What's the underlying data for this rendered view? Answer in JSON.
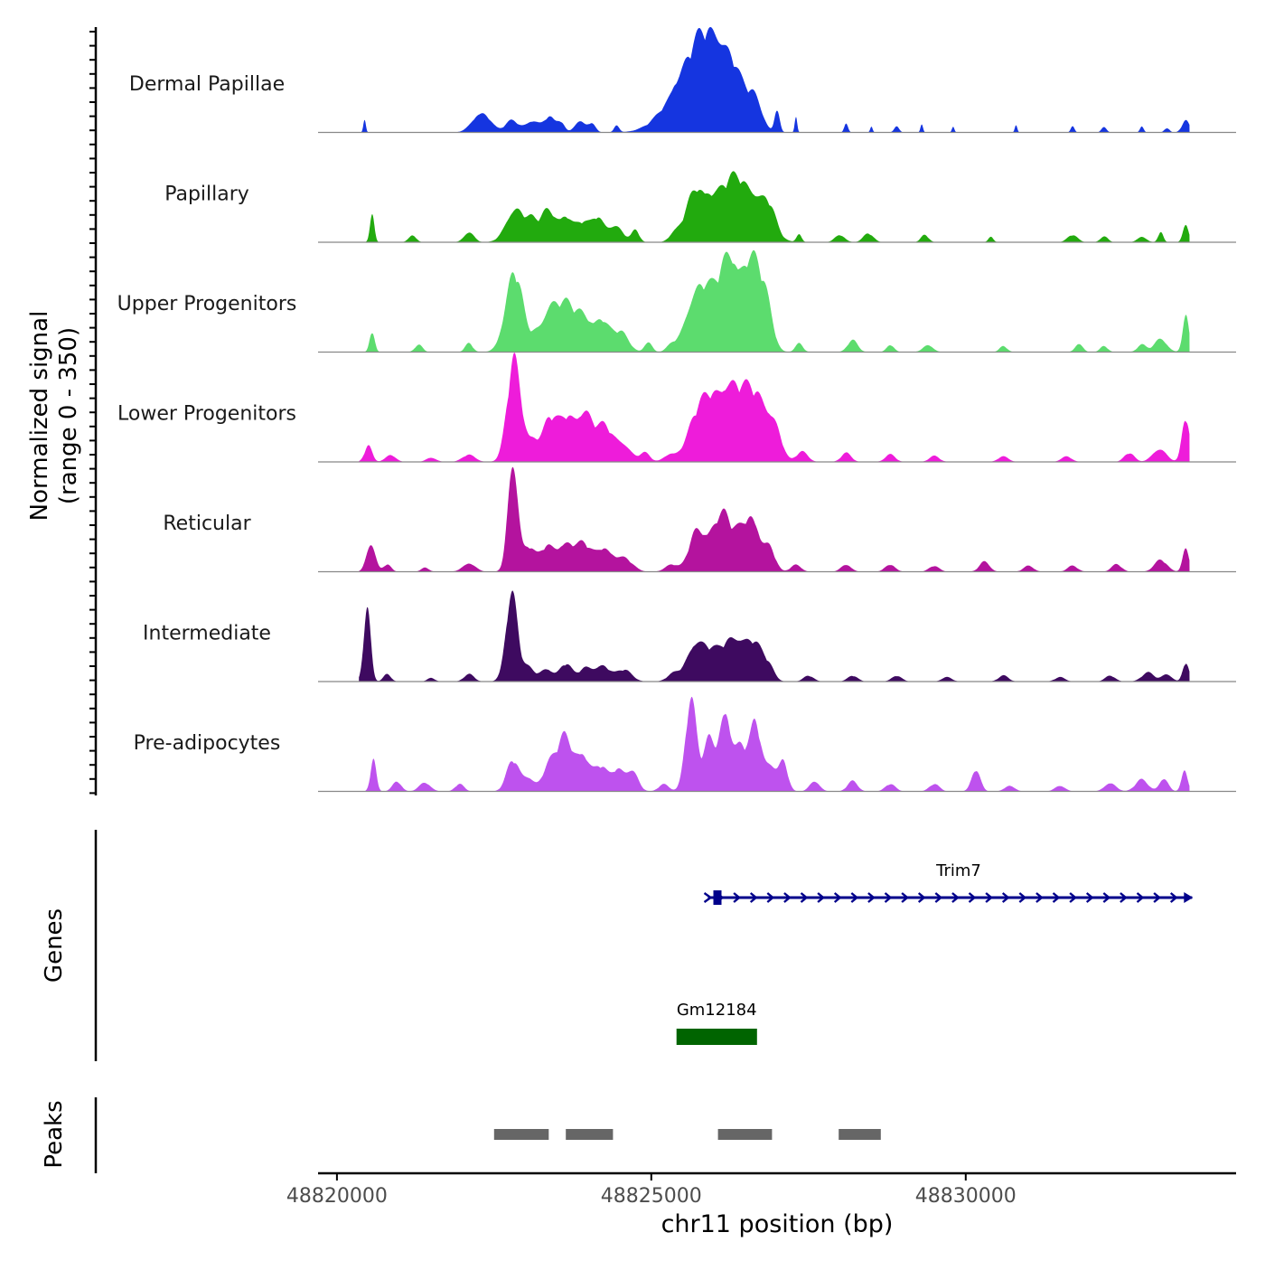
{
  "chart_data": {
    "type": "area",
    "title": "",
    "ylabel_lines": [
      "Normalized signal",
      "(range 0 - 350)"
    ],
    "y_range": [
      0,
      350
    ],
    "xlabel": "chr11 position (bp)",
    "x_range": [
      48819700,
      48834300
    ],
    "x_ticks": [
      48820000,
      48825000,
      48830000
    ],
    "x_tick_labels": [
      "48820000",
      "48825000",
      "48830000"
    ],
    "track_labels": {
      "genes": "Genes",
      "peaks": "Peaks"
    },
    "series": [
      {
        "name": "Dermal Papillae",
        "color": "#1535E0",
        "peaks": [
          [
            48820440,
            40,
            20
          ],
          [
            48822300,
            70,
            140
          ],
          [
            48822780,
            40,
            100
          ],
          [
            48823110,
            40,
            120
          ],
          [
            48823380,
            50,
            80
          ],
          [
            48823560,
            35,
            60
          ],
          [
            48823860,
            40,
            80
          ],
          [
            48824050,
            30,
            60
          ],
          [
            48824450,
            25,
            40
          ],
          [
            48825350,
            15,
            60
          ],
          [
            48825600,
            170,
            350
          ],
          [
            48825850,
            150,
            250
          ],
          [
            48826100,
            140,
            200
          ],
          [
            48826350,
            120,
            170
          ],
          [
            48826650,
            100,
            120
          ],
          [
            48827000,
            80,
            40
          ],
          [
            48827300,
            50,
            20
          ],
          [
            48828100,
            30,
            30
          ],
          [
            48828500,
            20,
            20
          ],
          [
            48828900,
            20,
            40
          ],
          [
            48829300,
            30,
            20
          ],
          [
            48829800,
            20,
            20
          ],
          [
            48830800,
            25,
            20
          ],
          [
            48831700,
            20,
            30
          ],
          [
            48832200,
            20,
            40
          ],
          [
            48832800,
            20,
            30
          ],
          [
            48833200,
            15,
            40
          ],
          [
            48833500,
            40,
            60
          ]
        ]
      },
      {
        "name": "Papillary",
        "color": "#22AA0E",
        "peaks": [
          [
            48820560,
            100,
            35
          ],
          [
            48821200,
            25,
            60
          ],
          [
            48822100,
            35,
            80
          ],
          [
            48822850,
            120,
            150
          ],
          [
            48823100,
            40,
            70
          ],
          [
            48823350,
            110,
            130
          ],
          [
            48823640,
            80,
            100
          ],
          [
            48823900,
            65,
            110
          ],
          [
            48824150,
            80,
            100
          ],
          [
            48824430,
            55,
            120
          ],
          [
            48824750,
            40,
            60
          ],
          [
            48825350,
            20,
            80
          ],
          [
            48825700,
            170,
            160
          ],
          [
            48825980,
            110,
            140
          ],
          [
            48826210,
            120,
            130
          ],
          [
            48826400,
            105,
            140
          ],
          [
            48826650,
            150,
            210
          ],
          [
            48826890,
            55,
            100
          ],
          [
            48827350,
            30,
            40
          ],
          [
            48828000,
            25,
            80
          ],
          [
            48828450,
            30,
            80
          ],
          [
            48829350,
            25,
            60
          ],
          [
            48830400,
            20,
            40
          ],
          [
            48831700,
            25,
            80
          ],
          [
            48832200,
            20,
            60
          ],
          [
            48832800,
            20,
            70
          ],
          [
            48833100,
            35,
            40
          ],
          [
            48833500,
            65,
            45
          ]
        ]
      },
      {
        "name": "Upper Progenitors",
        "color": "#5CDC6E",
        "peaks": [
          [
            48820560,
            70,
            40
          ],
          [
            48821300,
            25,
            60
          ],
          [
            48822100,
            30,
            60
          ],
          [
            48822820,
            270,
            140
          ],
          [
            48823150,
            35,
            70
          ],
          [
            48823390,
            155,
            130
          ],
          [
            48823650,
            135,
            120
          ],
          [
            48823900,
            115,
            120
          ],
          [
            48824200,
            110,
            130
          ],
          [
            48824520,
            65,
            120
          ],
          [
            48824950,
            35,
            60
          ],
          [
            48825320,
            20,
            80
          ],
          [
            48825690,
            175,
            160
          ],
          [
            48825930,
            135,
            150
          ],
          [
            48826200,
            210,
            140
          ],
          [
            48826380,
            160,
            170
          ],
          [
            48826640,
            260,
            150
          ],
          [
            48826850,
            90,
            100
          ],
          [
            48827350,
            30,
            60
          ],
          [
            48828200,
            40,
            80
          ],
          [
            48828800,
            25,
            60
          ],
          [
            48829400,
            25,
            80
          ],
          [
            48830600,
            20,
            60
          ],
          [
            48831800,
            30,
            60
          ],
          [
            48832200,
            20,
            60
          ],
          [
            48832800,
            25,
            70
          ],
          [
            48833100,
            45,
            100
          ],
          [
            48833500,
            120,
            50
          ]
        ]
      },
      {
        "name": "Lower Progenitors",
        "color": "#EE1CDA",
        "peaks": [
          [
            48820500,
            55,
            60
          ],
          [
            48820850,
            25,
            80
          ],
          [
            48821500,
            15,
            80
          ],
          [
            48822100,
            25,
            100
          ],
          [
            48822820,
            350,
            110
          ],
          [
            48823100,
            70,
            90
          ],
          [
            48823380,
            140,
            120
          ],
          [
            48823670,
            145,
            130
          ],
          [
            48823950,
            155,
            120
          ],
          [
            48824250,
            115,
            130
          ],
          [
            48824550,
            60,
            130
          ],
          [
            48824900,
            30,
            80
          ],
          [
            48825300,
            25,
            100
          ],
          [
            48825720,
            140,
            160
          ],
          [
            48825970,
            155,
            150
          ],
          [
            48826220,
            180,
            150
          ],
          [
            48826480,
            170,
            170
          ],
          [
            48826750,
            165,
            170
          ],
          [
            48826980,
            75,
            100
          ],
          [
            48827400,
            35,
            90
          ],
          [
            48828100,
            30,
            80
          ],
          [
            48828800,
            25,
            80
          ],
          [
            48829500,
            20,
            80
          ],
          [
            48830600,
            20,
            80
          ],
          [
            48831600,
            20,
            80
          ],
          [
            48832600,
            30,
            80
          ],
          [
            48833080,
            45,
            110
          ],
          [
            48833500,
            150,
            60
          ]
        ]
      },
      {
        "name": "Reticular",
        "color": "#B4139E",
        "peaks": [
          [
            48820540,
            100,
            70
          ],
          [
            48820800,
            25,
            60
          ],
          [
            48821400,
            15,
            60
          ],
          [
            48822100,
            30,
            100
          ],
          [
            48822800,
            390,
            80
          ],
          [
            48823050,
            80,
            90
          ],
          [
            48823340,
            85,
            120
          ],
          [
            48823640,
            95,
            120
          ],
          [
            48823920,
            90,
            120
          ],
          [
            48824250,
            80,
            130
          ],
          [
            48824570,
            45,
            130
          ],
          [
            48825320,
            25,
            100
          ],
          [
            48825720,
            140,
            120
          ],
          [
            48825960,
            100,
            100
          ],
          [
            48826150,
            170,
            110
          ],
          [
            48826400,
            120,
            120
          ],
          [
            48826620,
            170,
            110
          ],
          [
            48826880,
            80,
            90
          ],
          [
            48827300,
            25,
            80
          ],
          [
            48828100,
            25,
            80
          ],
          [
            48828800,
            25,
            80
          ],
          [
            48829500,
            20,
            80
          ],
          [
            48830300,
            35,
            80
          ],
          [
            48831000,
            20,
            80
          ],
          [
            48831700,
            20,
            80
          ],
          [
            48832400,
            25,
            80
          ],
          [
            48833100,
            40,
            100
          ],
          [
            48833500,
            85,
            50
          ]
        ]
      },
      {
        "name": "Intermediate",
        "color": "#3E0A60",
        "peaks": [
          [
            48820480,
            250,
            55
          ],
          [
            48820800,
            25,
            60
          ],
          [
            48821500,
            12,
            60
          ],
          [
            48822100,
            25,
            80
          ],
          [
            48822780,
            300,
            95
          ],
          [
            48823050,
            45,
            90
          ],
          [
            48823330,
            45,
            100
          ],
          [
            48823640,
            60,
            100
          ],
          [
            48823950,
            45,
            100
          ],
          [
            48824220,
            55,
            120
          ],
          [
            48824570,
            40,
            120
          ],
          [
            48825350,
            25,
            100
          ],
          [
            48825700,
            130,
            140
          ],
          [
            48825960,
            80,
            120
          ],
          [
            48826200,
            100,
            120
          ],
          [
            48826420,
            120,
            130
          ],
          [
            48826660,
            110,
            120
          ],
          [
            48826870,
            45,
            90
          ],
          [
            48827500,
            20,
            80
          ],
          [
            48828200,
            20,
            80
          ],
          [
            48828900,
            20,
            80
          ],
          [
            48829700,
            15,
            80
          ],
          [
            48830600,
            20,
            80
          ],
          [
            48831500,
            15,
            80
          ],
          [
            48832300,
            20,
            80
          ],
          [
            48832900,
            30,
            100
          ],
          [
            48833200,
            25,
            80
          ],
          [
            48833500,
            65,
            50
          ]
        ]
      },
      {
        "name": "Pre-adipocytes",
        "color": "#BE52EE",
        "peaks": [
          [
            48820580,
            110,
            45
          ],
          [
            48820950,
            35,
            70
          ],
          [
            48821400,
            30,
            90
          ],
          [
            48821950,
            25,
            70
          ],
          [
            48822800,
            105,
            100
          ],
          [
            48823050,
            45,
            90
          ],
          [
            48823380,
            90,
            110
          ],
          [
            48823620,
            175,
            110
          ],
          [
            48823900,
            130,
            120
          ],
          [
            48824200,
            80,
            100
          ],
          [
            48824470,
            75,
            100
          ],
          [
            48824700,
            70,
            90
          ],
          [
            48825200,
            25,
            80
          ],
          [
            48825630,
            310,
            90
          ],
          [
            48825920,
            175,
            90
          ],
          [
            48826170,
            280,
            90
          ],
          [
            48826420,
            150,
            100
          ],
          [
            48826660,
            225,
            90
          ],
          [
            48826900,
            90,
            90
          ],
          [
            48827100,
            100,
            70
          ],
          [
            48827600,
            35,
            80
          ],
          [
            48828200,
            35,
            80
          ],
          [
            48828800,
            25,
            80
          ],
          [
            48829500,
            25,
            80
          ],
          [
            48830160,
            75,
            70
          ],
          [
            48830700,
            20,
            80
          ],
          [
            48831500,
            20,
            80
          ],
          [
            48832300,
            30,
            90
          ],
          [
            48832800,
            40,
            100
          ],
          [
            48833150,
            45,
            70
          ],
          [
            48833480,
            65,
            50
          ]
        ]
      }
    ],
    "genes": [
      {
        "name": "Trim7",
        "start": 48825900,
        "end": 48833600,
        "strand": "+",
        "color": "#00008B"
      },
      {
        "name": "Gm12184",
        "start": 48825400,
        "end": 48826680,
        "strand": "",
        "color": "#006400"
      }
    ],
    "peak_regions": [
      [
        48822500,
        48823370
      ],
      [
        48823640,
        48824390
      ],
      [
        48826060,
        48826920
      ],
      [
        48827980,
        48828650
      ]
    ]
  }
}
